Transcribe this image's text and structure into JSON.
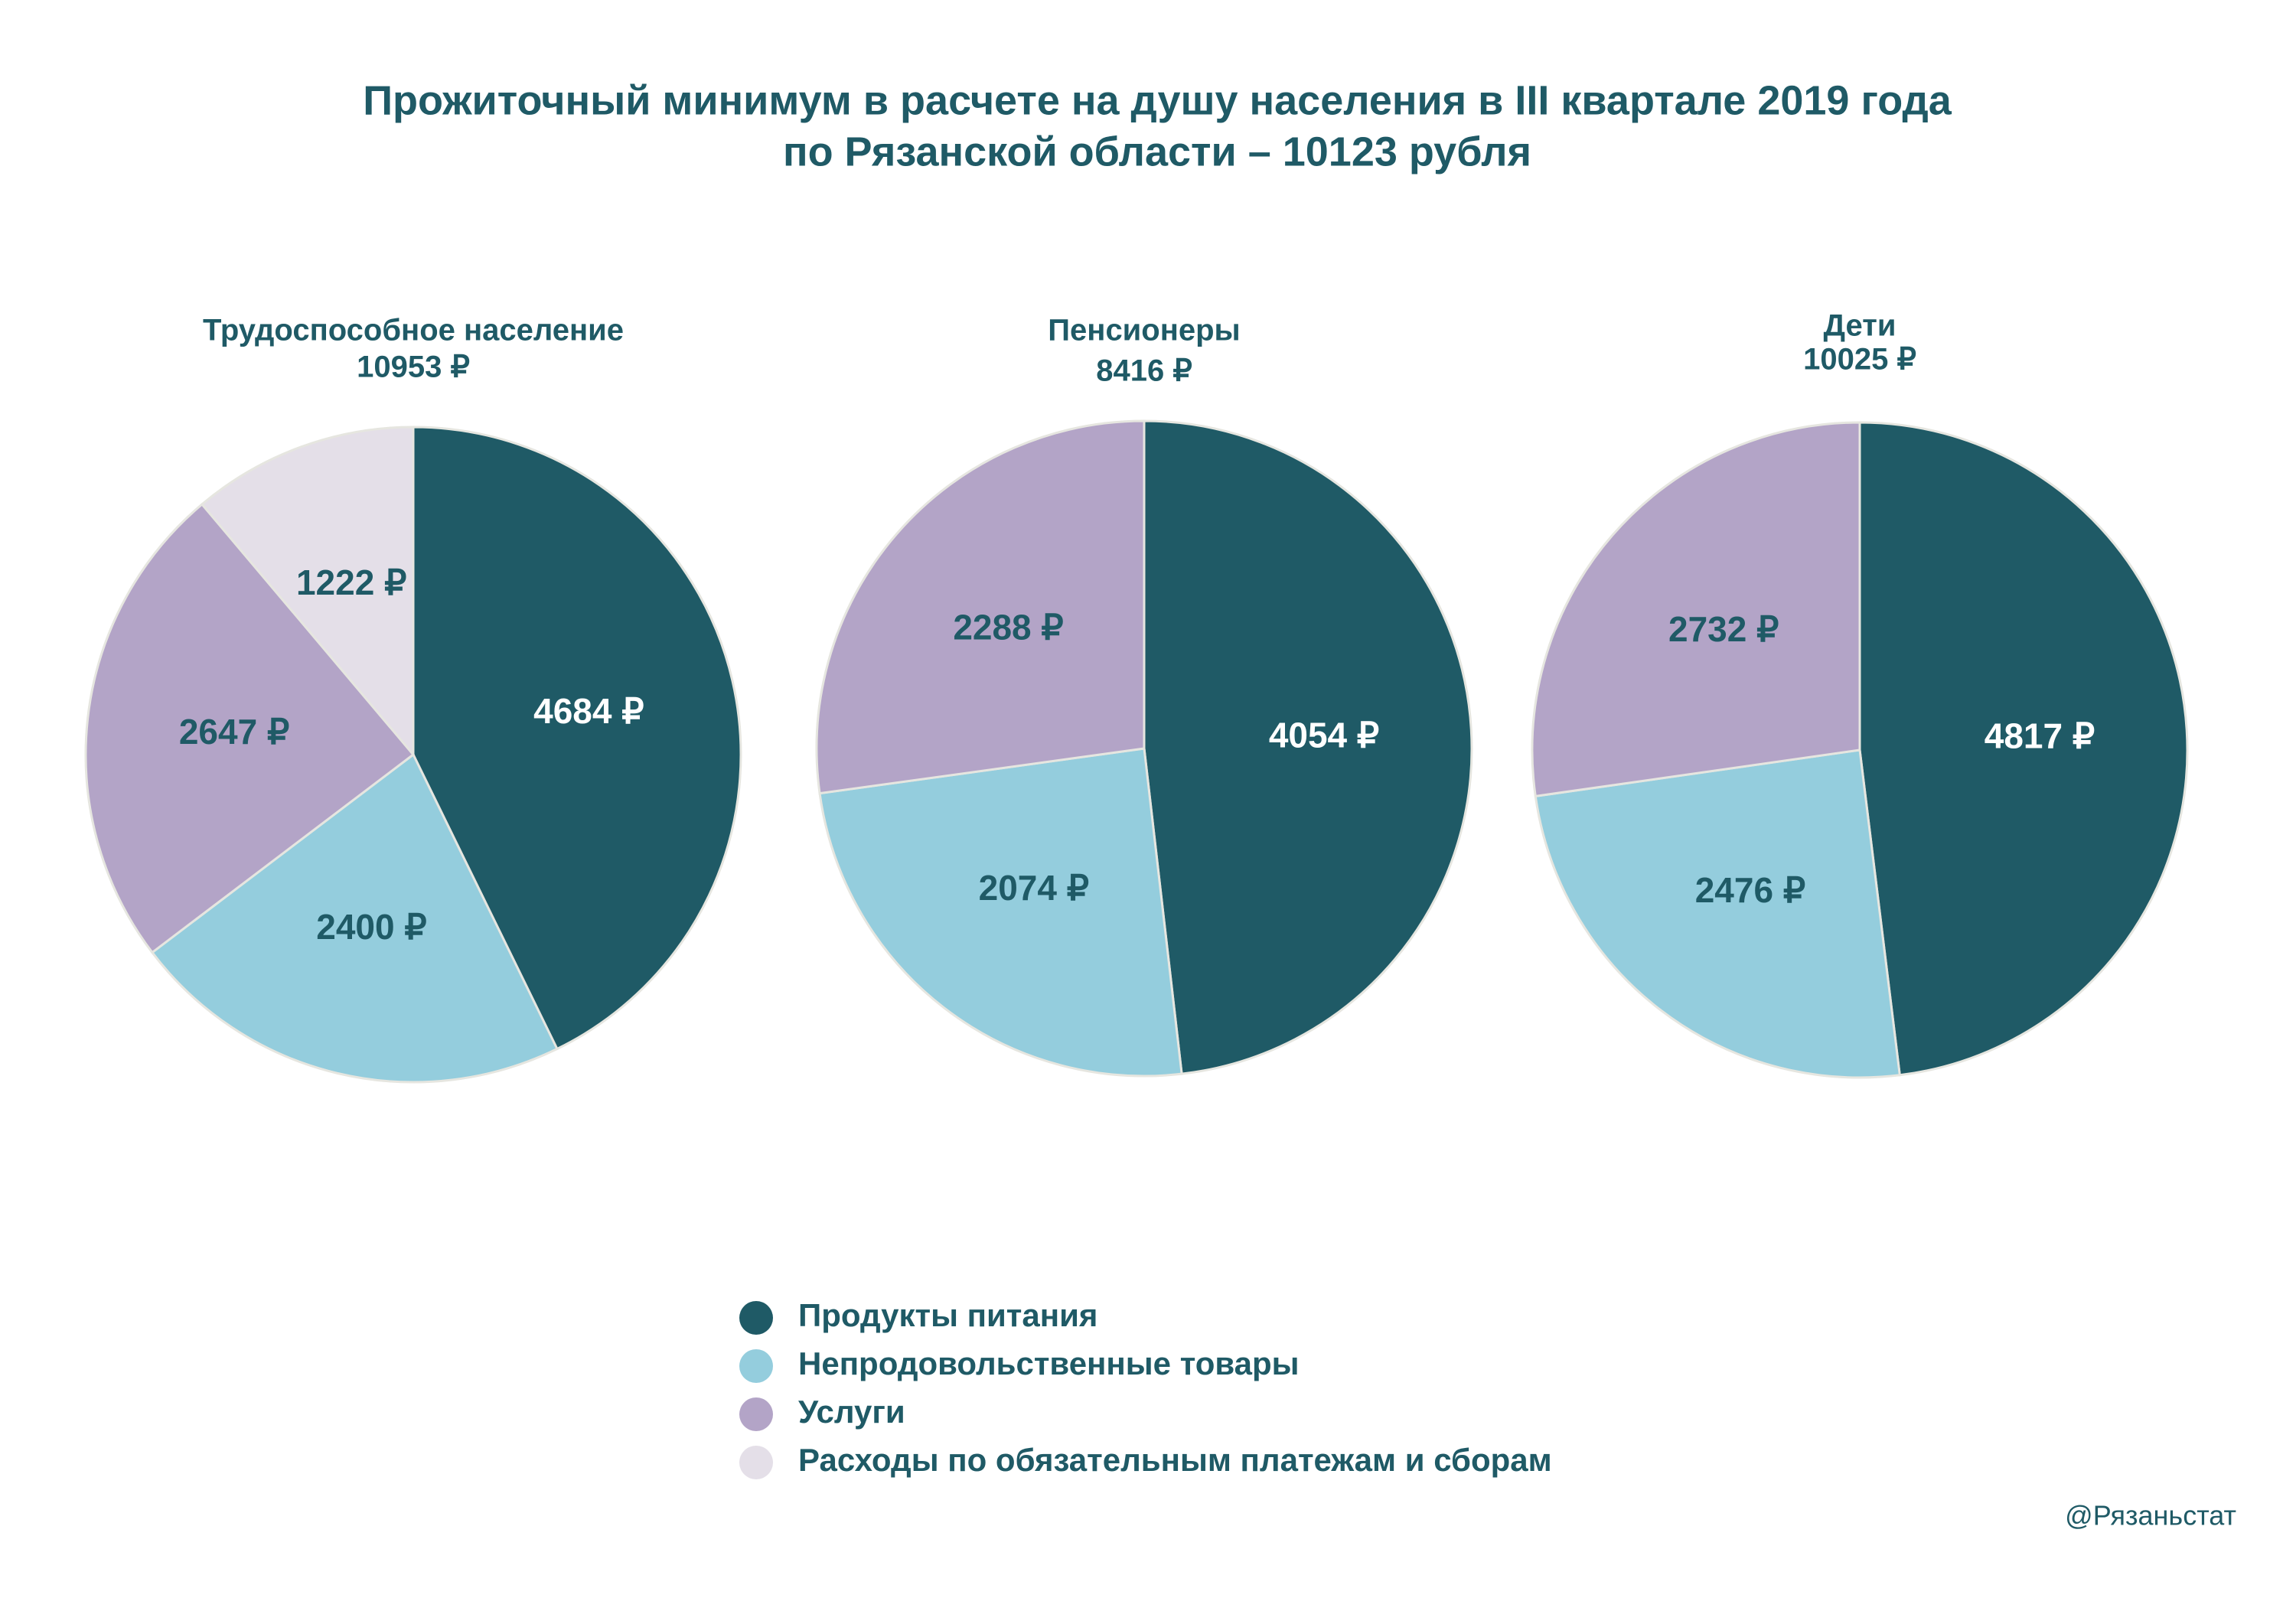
{
  "title": [
    "Прожиточный минимум в расчете на душу населения в III квартале 2019 года",
    "по Рязанской области – 10123 рубля"
  ],
  "source": "@Рязаньстат",
  "legend": {
    "categories": [
      "Продукты питания",
      "Непродовольственные товары",
      "Услуги",
      "Расходы по обязательным платежам и сборам"
    ],
    "colors": [
      "#1f5a66",
      "#94cddd",
      "#b3a4c7",
      "#e4dfe8"
    ]
  },
  "chart_data": [
    {
      "type": "pie",
      "title": "Трудоспособное население",
      "subtitle": "10953 ₽",
      "values": [
        4684,
        2400,
        2647,
        1222
      ],
      "value_labels": [
        "4684 ₽",
        "2400 ₽",
        "2647 ₽",
        "1222 ₽"
      ]
    },
    {
      "type": "pie",
      "title": "Пенсионеры",
      "subtitle": "8416 ₽",
      "values": [
        4054,
        2074,
        2288
      ],
      "value_labels": [
        "4054 ₽",
        "2074 ₽",
        "2288 ₽"
      ]
    },
    {
      "type": "pie",
      "title": "Дети",
      "subtitle": "10025 ₽",
      "values": [
        4817,
        2476,
        2732
      ],
      "value_labels": [
        "4817 ₽",
        "2476 ₽",
        "2732 ₽"
      ]
    }
  ]
}
